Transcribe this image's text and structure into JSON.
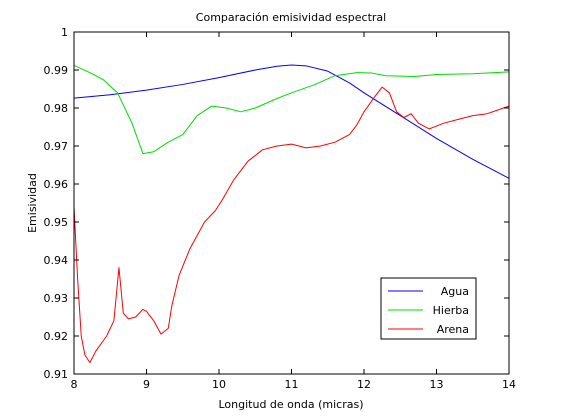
{
  "chart_data": {
    "type": "line",
    "title": "Comparación emisividad espectral",
    "xlabel": "Longitud de onda (micras)",
    "ylabel": "Emisividad",
    "xlim": [
      8,
      14
    ],
    "ylim": [
      0.91,
      1.0
    ],
    "xticks": [
      8,
      9,
      10,
      11,
      12,
      13,
      14
    ],
    "yticks": [
      0.91,
      0.92,
      0.93,
      0.94,
      0.95,
      0.96,
      0.97,
      0.98,
      0.99,
      1
    ],
    "xtick_labels": [
      "8",
      "9",
      "10",
      "11",
      "12",
      "13",
      "14"
    ],
    "ytick_labels": [
      "0.91",
      "0.92",
      "0.93",
      "0.94",
      "0.95",
      "0.96",
      "0.97",
      "0.98",
      "0.99",
      "1"
    ],
    "grid": false,
    "legend_position": "bottom-right",
    "series": [
      {
        "name": "Agua",
        "color": "#0000ff",
        "x": [
          8.0,
          8.5,
          9.0,
          9.5,
          10.0,
          10.5,
          10.8,
          11.0,
          11.2,
          11.5,
          11.8,
          12.0,
          12.5,
          13.0,
          13.5,
          14.0
        ],
        "y": [
          0.9826,
          0.9835,
          0.9847,
          0.9862,
          0.988,
          0.99,
          0.991,
          0.9913,
          0.9911,
          0.9897,
          0.9866,
          0.984,
          0.978,
          0.972,
          0.9665,
          0.9615
        ]
      },
      {
        "name": "Hierba",
        "color": "#00dd00",
        "x": [
          8.0,
          8.2,
          8.4,
          8.6,
          8.8,
          8.95,
          9.1,
          9.3,
          9.5,
          9.7,
          9.9,
          10.1,
          10.3,
          10.5,
          10.8,
          11.0,
          11.3,
          11.6,
          11.9,
          12.1,
          12.3,
          12.7,
          13.0,
          13.5,
          14.0
        ],
        "y": [
          0.9912,
          0.9895,
          0.9875,
          0.984,
          0.976,
          0.968,
          0.9685,
          0.971,
          0.973,
          0.978,
          0.9805,
          0.98,
          0.979,
          0.98,
          0.9825,
          0.984,
          0.986,
          0.9885,
          0.9893,
          0.9892,
          0.9885,
          0.9883,
          0.9888,
          0.989,
          0.9895
        ]
      },
      {
        "name": "Arena",
        "color": "#ff0000",
        "x": [
          8.0,
          8.05,
          8.1,
          8.15,
          8.22,
          8.3,
          8.45,
          8.55,
          8.62,
          8.68,
          8.75,
          8.85,
          8.95,
          9.0,
          9.1,
          9.2,
          9.3,
          9.35,
          9.45,
          9.6,
          9.8,
          9.95,
          10.05,
          10.2,
          10.4,
          10.6,
          10.8,
          11.0,
          11.2,
          11.4,
          11.6,
          11.8,
          11.9,
          12.0,
          12.15,
          12.25,
          12.35,
          12.45,
          12.55,
          12.65,
          12.75,
          12.9,
          13.1,
          13.3,
          13.5,
          13.7,
          13.85,
          14.0
        ],
        "y": [
          0.954,
          0.935,
          0.92,
          0.915,
          0.913,
          0.916,
          0.92,
          0.924,
          0.938,
          0.926,
          0.9245,
          0.925,
          0.927,
          0.9265,
          0.924,
          0.9205,
          0.922,
          0.928,
          0.936,
          0.943,
          0.95,
          0.953,
          0.956,
          0.961,
          0.966,
          0.969,
          0.97,
          0.9705,
          0.9695,
          0.97,
          0.971,
          0.973,
          0.9755,
          0.979,
          0.983,
          0.9855,
          0.984,
          0.979,
          0.9775,
          0.9785,
          0.976,
          0.9745,
          0.976,
          0.977,
          0.978,
          0.9785,
          0.9795,
          0.9805
        ]
      }
    ]
  }
}
